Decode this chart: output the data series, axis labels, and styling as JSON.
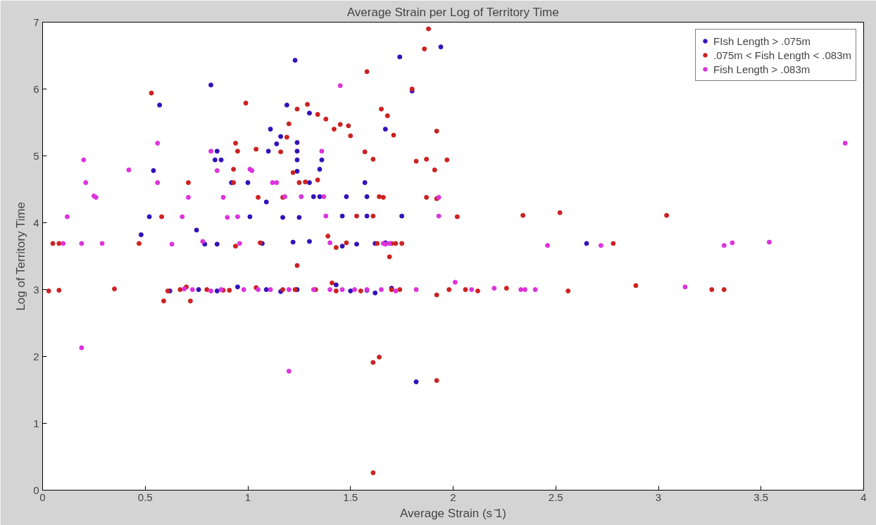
{
  "chart_data": {
    "type": "scatter",
    "title": "Average Strain per Log of Territory Time",
    "xlabel": "Average Strain (s ̄1)",
    "ylabel": "Log of Territory Time",
    "xlim": [
      0,
      4
    ],
    "xticks": [
      0,
      0.5,
      1,
      1.5,
      2,
      2.5,
      3,
      3.5,
      4
    ],
    "ylim": [
      0,
      7
    ],
    "yticks": [
      0,
      1,
      2,
      3,
      4,
      5,
      6,
      7
    ],
    "grid": false,
    "legend": "top right",
    "marker": "circle",
    "series": [
      {
        "name": "FIsh Length > .075m",
        "color": "#3311bb",
        "x": [
          1.23,
          0.82,
          1.94,
          1.74,
          1.8,
          0.57,
          1.19,
          1.3,
          1.11,
          1.16,
          1.14,
          1.24,
          1.1,
          0.85,
          0.84,
          0.87,
          1.24,
          1.24,
          1.24,
          1.36,
          1.35,
          1.67,
          0.54,
          0.92,
          1.0,
          1.3,
          1.57,
          1.09,
          1.32,
          1.35,
          1.48,
          1.58,
          1.46,
          1.58,
          1.75,
          0.52,
          1.01,
          1.17,
          1.25,
          0.48,
          0.75,
          0.79,
          0.85,
          1.07,
          1.22,
          1.3,
          1.46,
          1.53,
          1.62,
          1.67,
          0.62,
          0.76,
          0.85,
          0.95,
          1.09,
          1.16,
          1.24,
          1.43,
          1.5,
          1.58,
          1.62,
          1.7,
          1.82,
          2.65
        ],
        "values": [
          6.43,
          6.06,
          6.63,
          6.48,
          5.97,
          5.76,
          5.76,
          5.64,
          5.4,
          5.29,
          5.18,
          5.2,
          5.07,
          5.07,
          4.94,
          4.94,
          5.07,
          4.94,
          4.77,
          4.94,
          4.8,
          5.4,
          4.78,
          4.6,
          4.6,
          4.6,
          4.6,
          4.31,
          4.39,
          4.39,
          4.39,
          4.39,
          4.1,
          4.1,
          4.1,
          4.09,
          4.09,
          4.08,
          4.08,
          3.82,
          3.89,
          3.68,
          3.68,
          3.69,
          3.71,
          3.72,
          3.65,
          3.68,
          3.69,
          3.7,
          2.98,
          3.0,
          2.98,
          3.04,
          3.0,
          2.97,
          3.0,
          3.07,
          2.98,
          2.99,
          2.95,
          3.02,
          1.62,
          3.69
        ]
      },
      {
        "name": ".075m < Fish Length < .083m",
        "color": "#cc2222",
        "x": [
          1.88,
          1.86,
          1.58,
          0.53,
          0.99,
          1.29,
          1.8,
          1.24,
          1.34,
          1.38,
          1.42,
          1.45,
          1.49,
          1.68,
          1.71,
          1.92,
          1.04,
          1.19,
          1.2,
          0.95,
          0.94,
          1.16,
          1.5,
          1.57,
          1.61,
          1.82,
          1.87,
          1.97,
          0.93,
          1.34,
          1.28,
          1.22,
          1.91,
          1.65,
          0.71,
          0.93,
          1.05,
          1.17,
          1.25,
          1.66,
          1.92,
          1.87,
          0.58,
          1.39,
          1.43,
          1.48,
          1.63,
          1.53,
          1.61,
          1.64,
          2.02,
          2.34,
          2.52,
          3.04,
          1.7,
          1.75,
          1.69,
          1.24,
          0.05,
          0.08,
          0.47,
          0.94,
          1.06,
          1.72,
          2.78,
          0.03,
          0.08,
          0.35,
          0.61,
          0.59,
          0.72,
          0.7,
          0.67,
          0.8,
          0.88,
          0.91,
          1.04,
          1.17,
          1.23,
          1.33,
          1.41,
          1.43,
          1.55,
          1.7,
          1.74,
          1.92,
          1.98,
          2.06,
          2.12,
          2.26,
          2.56,
          2.89,
          3.26,
          3.32,
          1.61,
          1.64,
          1.92,
          1.61
        ],
        "values": [
          6.9,
          6.6,
          6.26,
          5.94,
          5.79,
          5.77,
          6.0,
          5.7,
          5.62,
          5.55,
          5.4,
          5.47,
          5.45,
          5.6,
          5.31,
          5.37,
          5.1,
          5.28,
          5.48,
          5.07,
          5.19,
          5.06,
          5.3,
          5.06,
          4.95,
          4.92,
          4.95,
          4.94,
          4.8,
          4.64,
          4.61,
          4.75,
          4.79,
          5.7,
          4.6,
          4.6,
          4.38,
          4.38,
          4.6,
          4.38,
          4.36,
          4.38,
          4.09,
          3.8,
          3.63,
          3.7,
          3.69,
          4.1,
          4.1,
          4.39,
          4.09,
          4.11,
          4.15,
          4.11,
          3.69,
          3.69,
          3.49,
          3.36,
          3.69,
          3.69,
          3.69,
          3.65,
          3.7,
          3.69,
          3.69,
          2.98,
          2.99,
          3.01,
          2.98,
          2.83,
          2.83,
          3.04,
          3.0,
          3.0,
          2.99,
          2.99,
          3.03,
          3.0,
          3.0,
          3.0,
          3.1,
          2.98,
          2.98,
          3.0,
          3.0,
          2.92,
          3.0,
          3.0,
          2.98,
          3.02,
          2.98,
          3.06,
          3.0,
          3.0,
          1.91,
          1.99,
          1.64,
          0.26
        ]
      },
      {
        "name": "Fish Length > .083m",
        "color": "#dd33dd",
        "x": [
          0.2,
          0.21,
          0.25,
          0.26,
          0.12,
          0.42,
          0.56,
          0.56,
          0.68,
          0.71,
          0.85,
          0.88,
          0.82,
          1.01,
          1.02,
          1.12,
          1.14,
          1.18,
          1.26,
          1.36,
          1.45,
          1.37,
          1.38,
          1.93,
          1.93,
          0.9,
          0.95,
          0.1,
          0.19,
          0.29,
          0.63,
          0.78,
          0.96,
          1.4,
          1.66,
          1.67,
          1.69,
          2.46,
          2.72,
          3.32,
          3.36,
          3.54,
          3.91,
          0.69,
          0.73,
          0.82,
          0.87,
          0.98,
          1.05,
          1.11,
          1.2,
          1.32,
          1.4,
          1.46,
          1.52,
          1.58,
          1.65,
          1.72,
          1.82,
          2.01,
          2.09,
          2.2,
          2.33,
          2.35,
          2.4,
          3.13,
          0.19,
          1.2
        ],
        "values": [
          4.94,
          4.6,
          4.4,
          4.38,
          4.09,
          4.79,
          5.19,
          4.6,
          4.09,
          4.38,
          4.78,
          4.38,
          5.07,
          4.8,
          4.78,
          4.6,
          4.6,
          4.39,
          4.39,
          5.07,
          6.05,
          4.39,
          4.1,
          4.38,
          4.1,
          4.08,
          4.09,
          3.69,
          3.69,
          3.69,
          3.68,
          3.72,
          3.69,
          3.7,
          3.69,
          3.68,
          3.69,
          3.66,
          3.66,
          3.66,
          3.7,
          3.71,
          5.19,
          3.01,
          3.0,
          2.98,
          3.0,
          3.0,
          3.0,
          3.0,
          3.0,
          3.0,
          3.0,
          3.0,
          3.0,
          3.0,
          3.0,
          2.98,
          3.0,
          3.11,
          3.0,
          3.02,
          3.0,
          3.0,
          3.0,
          3.04,
          2.13,
          1.78
        ]
      }
    ]
  }
}
